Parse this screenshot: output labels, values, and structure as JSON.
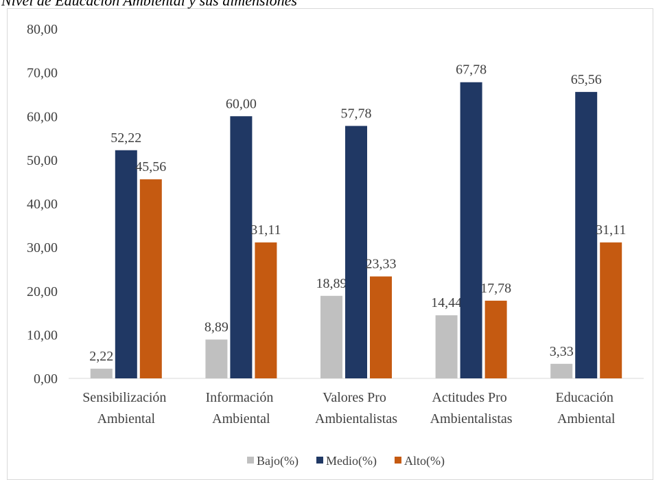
{
  "chart_data": {
    "type": "bar",
    "title": "Nivel de Educación Ambiental y sus dimensiones",
    "categories": [
      "Sensibilización Ambiental",
      "Información Ambiental",
      "Valores Pro Ambientalistas",
      "Actitudes Pro Ambientalistas",
      "Educación Ambiental"
    ],
    "series": [
      {
        "name": "Bajo(%)",
        "color": "#c0c0c0",
        "values": [
          2.22,
          8.89,
          18.89,
          14.44,
          3.33
        ],
        "value_labels": [
          "2,22",
          "8,89",
          "18,89",
          "14,44",
          "3,33"
        ]
      },
      {
        "name": "Medio(%)",
        "color": "#203864",
        "values": [
          52.22,
          60.0,
          57.78,
          67.78,
          65.56
        ],
        "value_labels": [
          "52,22",
          "60,00",
          "57,78",
          "67,78",
          "65,56"
        ]
      },
      {
        "name": "Alto(%)",
        "color": "#c55a11",
        "values": [
          45.56,
          31.11,
          23.33,
          17.78,
          31.11
        ],
        "value_labels": [
          "45,56",
          "31,11",
          "23,33",
          "17,78",
          "31,11"
        ]
      }
    ],
    "ylim": [
      0,
      80
    ],
    "yticks": [
      {
        "value": 0,
        "label": "0,00"
      },
      {
        "value": 10,
        "label": "10,00"
      },
      {
        "value": 20,
        "label": "20,00"
      },
      {
        "value": 30,
        "label": "30,00"
      },
      {
        "value": 40,
        "label": "40,00"
      },
      {
        "value": 50,
        "label": "50,00"
      },
      {
        "value": 60,
        "label": "60,00"
      },
      {
        "value": 70,
        "label": "70,00"
      },
      {
        "value": 80,
        "label": "80,00"
      }
    ],
    "grid": false,
    "legend": "bottom"
  }
}
